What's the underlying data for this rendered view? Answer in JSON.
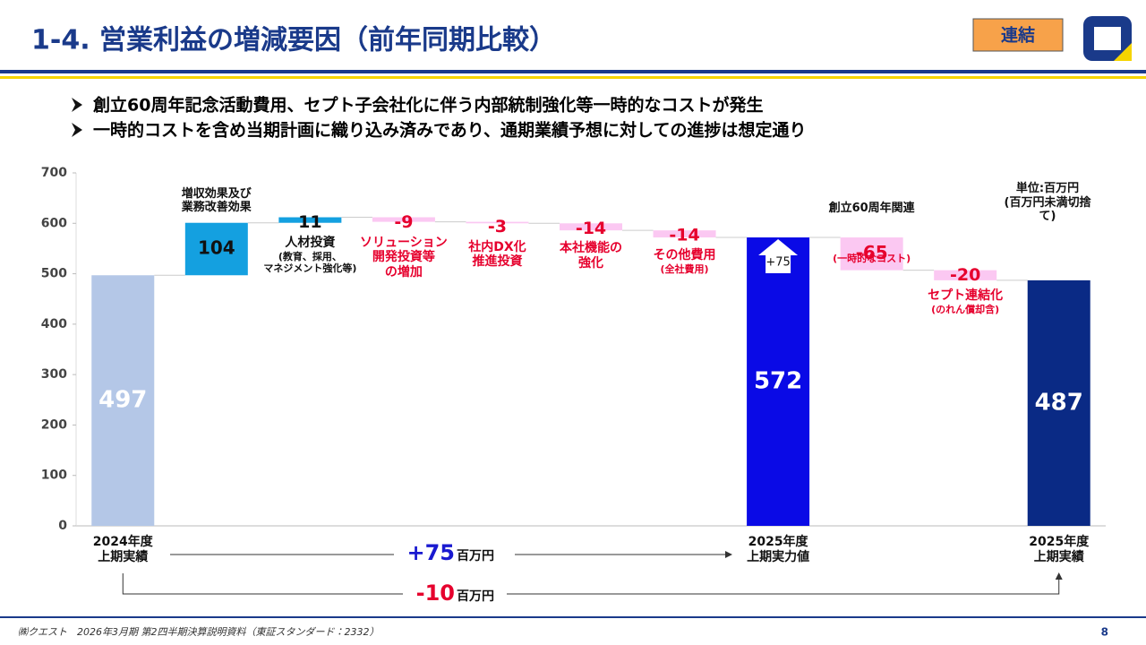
{
  "header": {
    "title": "1-4. 営業利益の増減要因（前年同期比較）",
    "badge": "連結"
  },
  "bullets": [
    "創立60周年記念活動費用、セプト子会社化に伴う内部統制強化等一時的なコストが発生",
    "一時的コストを含め当期計画に織り込み済みであり、通期業績予想に対しての進捗は想定通り"
  ],
  "chart_data": {
    "type": "waterfall",
    "categories": [
      "2024年度\n上期実績",
      "増収効果及び\n業務改善効果",
      "人材投資",
      "ソリューション\n開発投資等\nの増加",
      "社内DX化\n推進投資",
      "本社機能の\n強化",
      "その他費用",
      "2025年度\n上期実力値",
      "創立60周年関連",
      "セプト連結化",
      "2025年度\n上期実績"
    ],
    "category_notes": [
      null,
      null,
      "(教育、採用、\nマネジメント強化等)",
      null,
      null,
      null,
      "(全社費用)",
      null,
      "(一時的なコスト)",
      "(のれん償却含)",
      null
    ],
    "values": [
      497,
      104,
      11,
      -9,
      -3,
      -14,
      -14,
      572,
      -65,
      -20,
      487
    ],
    "totals": [
      true,
      false,
      false,
      false,
      false,
      false,
      false,
      true,
      false,
      false,
      true
    ],
    "colors": [
      "#b4c7e7",
      "#14a0e0",
      "#14a0e0",
      "#fbc8f2",
      "#fbc8f2",
      "#fbc8f2",
      "#fbc8f2",
      "#0a0ae6",
      "#fbc8f2",
      "#fbc8f2",
      "#0a2a85"
    ],
    "ylim": [
      0,
      700
    ],
    "yticks": [
      0,
      100,
      200,
      300,
      400,
      500,
      600,
      700
    ],
    "unit_note": "単位:百万円\n(百万円未満切捨て)",
    "inner_label": "+75",
    "brackets": [
      {
        "label": "+75",
        "unit": "百万円"
      },
      {
        "label": "-10",
        "unit": "百万円"
      }
    ]
  },
  "footer": {
    "text": "㈱クエスト　2026年3月期 第2四半期決算説明資料（東証スタンダード：2332）",
    "page": "8"
  }
}
